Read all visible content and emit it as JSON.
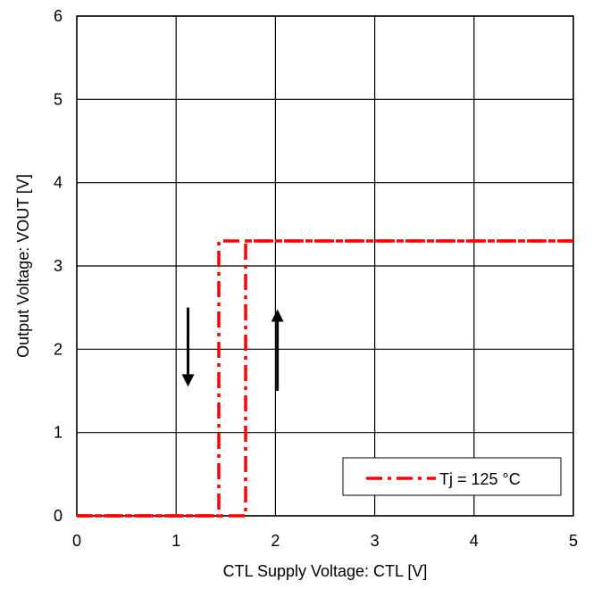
{
  "chart_data": {
    "type": "line",
    "xlabel": "CTL Supply Voltage: CTL [V]",
    "ylabel": "Output Voltage: VOUT [V]",
    "xlim": [
      0,
      5
    ],
    "ylim": [
      0,
      6
    ],
    "x_ticks": [
      "0",
      "1",
      "2",
      "3",
      "4",
      "5"
    ],
    "y_ticks": [
      "0",
      "1",
      "2",
      "3",
      "4",
      "5",
      "6"
    ],
    "grid": true,
    "legend_position": "bottom-right",
    "series": [
      {
        "name": "Tj = 125 °C",
        "color": "#ff0000",
        "line_style": "dash-dot",
        "rising_curve": {
          "x": [
            0,
            1.7,
            1.7,
            5
          ],
          "y": [
            0,
            0,
            3.3,
            3.3
          ]
        },
        "falling_curve": {
          "x": [
            5,
            1.43,
            1.43,
            0
          ],
          "y": [
            3.3,
            3.3,
            0,
            0
          ]
        }
      }
    ],
    "annotations": [
      {
        "type": "arrow",
        "direction": "down",
        "x": 1.12,
        "y_from": 2.5,
        "y_to": 1.55
      },
      {
        "type": "arrow",
        "direction": "up",
        "x": 2.02,
        "y_from": 1.5,
        "y_to": 2.48
      }
    ]
  }
}
